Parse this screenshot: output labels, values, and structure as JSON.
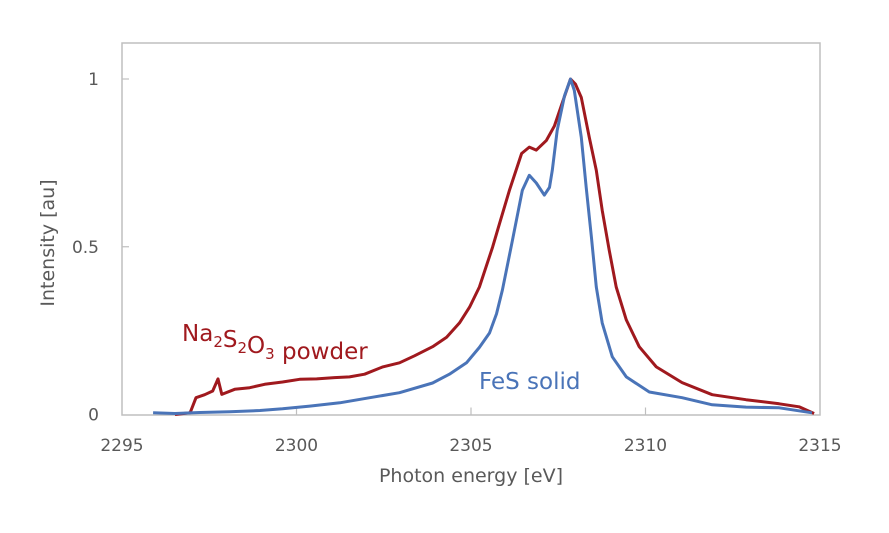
{
  "chart_data": {
    "type": "line",
    "title": "",
    "xlabel": "Photon energy [eV]",
    "ylabel": "Intensity [au]",
    "xlim": [
      2295,
      2315
    ],
    "ylim": [
      0,
      1
    ],
    "xticks": [
      2295,
      2300,
      2305,
      2310,
      2315
    ],
    "xtick_labels": [
      "2295",
      "2300",
      "2305",
      "2310",
      "2315"
    ],
    "yticks": [
      0,
      0.5,
      1
    ],
    "ytick_labels": [
      "0",
      "0.5",
      "1"
    ],
    "grid": false,
    "legend": "inline labels",
    "series": [
      {
        "name": "Na2S2O3 powder",
        "label_parts": [
          [
            "Na",
            ""
          ],
          [
            "2",
            "sub"
          ],
          [
            "S",
            ""
          ],
          [
            "2",
            "sub"
          ],
          [
            "O",
            ""
          ],
          [
            "3",
            "sub"
          ],
          [
            " powder",
            ""
          ]
        ],
        "color": "#A0191E",
        "x": [
          2296.52,
          2296.95,
          2297.12,
          2297.37,
          2297.6,
          2297.75,
          2297.86,
          2298.23,
          2298.66,
          2299.09,
          2299.6,
          2300.09,
          2300.58,
          2301.09,
          2301.52,
          2301.95,
          2302.47,
          2302.95,
          2303.38,
          2303.9,
          2304.3,
          2304.67,
          2304.96,
          2305.24,
          2305.62,
          2305.82,
          2306.1,
          2306.45,
          2306.67,
          2306.87,
          2307.16,
          2307.39,
          2307.62,
          2307.85,
          2307.99,
          2308.16,
          2308.39,
          2308.59,
          2308.76,
          2308.96,
          2309.16,
          2309.45,
          2309.82,
          2310.31,
          2311.05,
          2311.91,
          2312.88,
          2313.83,
          2314.4,
          2314.83
        ],
        "y": [
          0.0,
          0.005,
          0.05,
          0.059,
          0.07,
          0.106,
          0.06,
          0.075,
          0.08,
          0.09,
          0.097,
          0.105,
          0.106,
          0.11,
          0.112,
          0.12,
          0.142,
          0.154,
          0.175,
          0.202,
          0.23,
          0.273,
          0.32,
          0.38,
          0.499,
          0.57,
          0.668,
          0.778,
          0.797,
          0.788,
          0.817,
          0.86,
          0.93,
          1.0,
          0.985,
          0.945,
          0.826,
          0.728,
          0.609,
          0.49,
          0.38,
          0.282,
          0.202,
          0.142,
          0.095,
          0.059,
          0.044,
          0.032,
          0.023,
          0.003
        ]
      },
      {
        "name": "FeS solid",
        "label_parts": [
          [
            "FeS solid",
            ""
          ]
        ],
        "color": "#4A74B8",
        "x": [
          2295.89,
          2296.52,
          2297.23,
          2298.09,
          2298.95,
          2299.6,
          2300.38,
          2301.24,
          2302.1,
          2302.95,
          2303.9,
          2304.38,
          2304.87,
          2305.24,
          2305.53,
          2305.73,
          2305.9,
          2306.19,
          2306.47,
          2306.67,
          2306.87,
          2307.1,
          2307.25,
          2307.33,
          2307.47,
          2307.68,
          2307.85,
          2307.96,
          2308.16,
          2308.3,
          2308.45,
          2308.59,
          2308.76,
          2309.05,
          2309.45,
          2310.11,
          2311.05,
          2311.91,
          2312.88,
          2313.83,
          2314.77
        ],
        "y": [
          0.005,
          0.003,
          0.006,
          0.008,
          0.012,
          0.017,
          0.025,
          0.035,
          0.05,
          0.065,
          0.094,
          0.12,
          0.154,
          0.2,
          0.243,
          0.3,
          0.371,
          0.52,
          0.668,
          0.713,
          0.69,
          0.654,
          0.677,
          0.728,
          0.847,
          0.95,
          1.0,
          0.966,
          0.826,
          0.677,
          0.529,
          0.38,
          0.273,
          0.172,
          0.112,
          0.067,
          0.05,
          0.029,
          0.022,
          0.02,
          0.005
        ]
      }
    ],
    "annotations": [
      {
        "text": "Na2S2O3 powder",
        "series": 0,
        "near_x": 2297.5,
        "near_y": 0.22
      },
      {
        "text": "FeS solid",
        "series": 1,
        "near_x": 2305.2,
        "near_y": 0.08
      }
    ]
  }
}
